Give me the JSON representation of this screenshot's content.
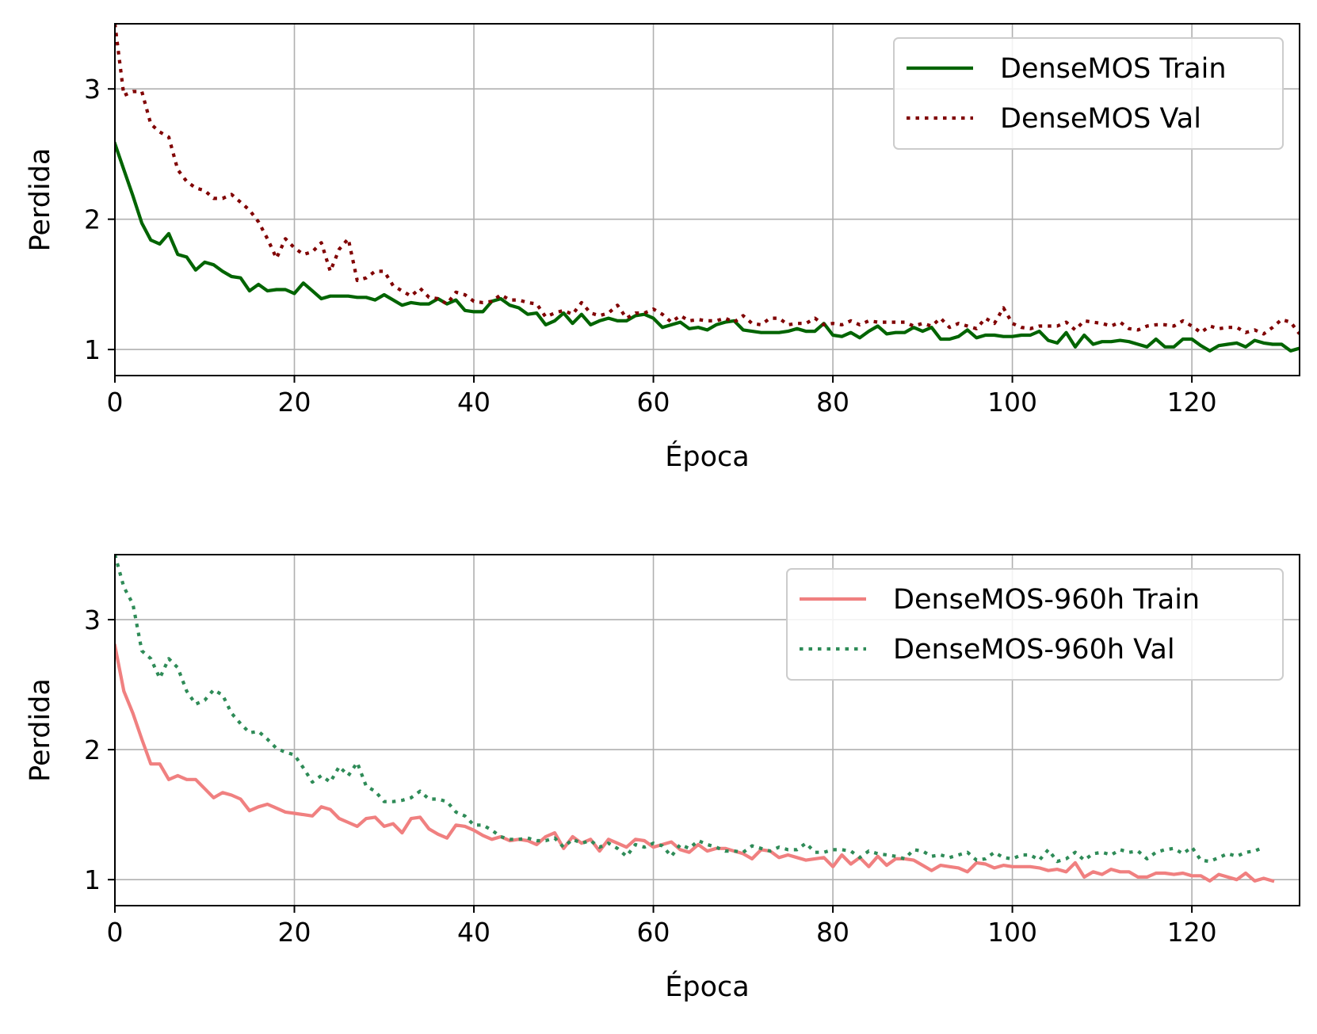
{
  "chart_data": [
    {
      "type": "line",
      "xlabel": "Época",
      "ylabel": "Perdida",
      "xlim": [
        0,
        132
      ],
      "ylim": [
        0.8,
        3.5
      ],
      "xticks": [
        0,
        20,
        40,
        60,
        80,
        100,
        120
      ],
      "yticks": [
        1,
        2,
        3
      ],
      "grid": true,
      "legend_position": "top-right",
      "series": [
        {
          "name": "DenseMOS Train",
          "color": "#006400",
          "style": "solid",
          "values": [
            2.58,
            2.38,
            2.18,
            1.97,
            1.84,
            1.81,
            1.89,
            1.73,
            1.71,
            1.61,
            1.67,
            1.65,
            1.6,
            1.56,
            1.55,
            1.45,
            1.5,
            1.45,
            1.46,
            1.46,
            1.43,
            1.51,
            1.45,
            1.39,
            1.41,
            1.41,
            1.41,
            1.4,
            1.4,
            1.38,
            1.42,
            1.38,
            1.34,
            1.36,
            1.35,
            1.35,
            1.39,
            1.35,
            1.38,
            1.3,
            1.29,
            1.29,
            1.37,
            1.39,
            1.34,
            1.32,
            1.27,
            1.28,
            1.19,
            1.22,
            1.28,
            1.2,
            1.27,
            1.19,
            1.22,
            1.24,
            1.22,
            1.22,
            1.26,
            1.27,
            1.24,
            1.17,
            1.19,
            1.21,
            1.16,
            1.17,
            1.15,
            1.19,
            1.21,
            1.22,
            1.15,
            1.14,
            1.13,
            1.13,
            1.13,
            1.14,
            1.16,
            1.14,
            1.14,
            1.2,
            1.11,
            1.1,
            1.13,
            1.09,
            1.14,
            1.18,
            1.12,
            1.13,
            1.13,
            1.17,
            1.14,
            1.17,
            1.08,
            1.08,
            1.1,
            1.15,
            1.09,
            1.11,
            1.11,
            1.1,
            1.1,
            1.11,
            1.11,
            1.14,
            1.07,
            1.05,
            1.13,
            1.02,
            1.11,
            1.04,
            1.06,
            1.06,
            1.07,
            1.06,
            1.04,
            1.02,
            1.08,
            1.02,
            1.02,
            1.08,
            1.08,
            1.03,
            0.99,
            1.03,
            1.04,
            1.05,
            1.02,
            1.07,
            1.05,
            1.04,
            1.04,
            0.99,
            1.01,
            1.05
          ]
        },
        {
          "name": "DenseMOS Val",
          "color": "#800000",
          "style": "dotted",
          "values": [
            3.5,
            2.95,
            2.98,
            2.98,
            2.73,
            2.67,
            2.63,
            2.38,
            2.29,
            2.24,
            2.22,
            2.16,
            2.16,
            2.19,
            2.13,
            2.07,
            1.98,
            1.85,
            1.7,
            1.85,
            1.78,
            1.73,
            1.75,
            1.82,
            1.6,
            1.77,
            1.85,
            1.53,
            1.55,
            1.6,
            1.6,
            1.49,
            1.45,
            1.41,
            1.47,
            1.4,
            1.39,
            1.35,
            1.44,
            1.42,
            1.37,
            1.36,
            1.37,
            1.42,
            1.38,
            1.38,
            1.36,
            1.35,
            1.25,
            1.28,
            1.3,
            1.27,
            1.36,
            1.28,
            1.26,
            1.28,
            1.34,
            1.24,
            1.28,
            1.28,
            1.31,
            1.27,
            1.21,
            1.26,
            1.22,
            1.23,
            1.22,
            1.22,
            1.24,
            1.21,
            1.26,
            1.2,
            1.19,
            1.24,
            1.24,
            1.19,
            1.2,
            1.2,
            1.24,
            1.19,
            1.2,
            1.19,
            1.22,
            1.19,
            1.22,
            1.21,
            1.21,
            1.21,
            1.21,
            1.18,
            1.2,
            1.18,
            1.24,
            1.17,
            1.2,
            1.18,
            1.16,
            1.24,
            1.2,
            1.32,
            1.2,
            1.17,
            1.16,
            1.18,
            1.18,
            1.18,
            1.21,
            1.15,
            1.22,
            1.21,
            1.2,
            1.18,
            1.21,
            1.16,
            1.15,
            1.18,
            1.19,
            1.19,
            1.18,
            1.22,
            1.18,
            1.13,
            1.18,
            1.16,
            1.17,
            1.17,
            1.13,
            1.15,
            1.12,
            1.17,
            1.23,
            1.21,
            1.12
          ]
        }
      ]
    },
    {
      "type": "line",
      "xlabel": "Época",
      "ylabel": "Perdida",
      "xlim": [
        0,
        132
      ],
      "ylim": [
        0.8,
        3.5
      ],
      "xticks": [
        0,
        20,
        40,
        60,
        80,
        100,
        120
      ],
      "yticks": [
        1,
        2,
        3
      ],
      "grid": true,
      "legend_position": "top-right",
      "series": [
        {
          "name": "DenseMOS-960h  Train",
          "color": "#f08080",
          "style": "solid",
          "values": [
            2.8,
            2.45,
            2.28,
            2.08,
            1.89,
            1.89,
            1.77,
            1.8,
            1.77,
            1.77,
            1.7,
            1.63,
            1.67,
            1.65,
            1.62,
            1.53,
            1.56,
            1.58,
            1.55,
            1.52,
            1.51,
            1.5,
            1.49,
            1.56,
            1.54,
            1.47,
            1.44,
            1.41,
            1.47,
            1.48,
            1.41,
            1.43,
            1.36,
            1.47,
            1.48,
            1.39,
            1.35,
            1.32,
            1.42,
            1.41,
            1.38,
            1.34,
            1.31,
            1.33,
            1.3,
            1.31,
            1.3,
            1.27,
            1.33,
            1.36,
            1.24,
            1.33,
            1.28,
            1.31,
            1.22,
            1.31,
            1.28,
            1.25,
            1.31,
            1.3,
            1.25,
            1.27,
            1.29,
            1.23,
            1.21,
            1.27,
            1.22,
            1.24,
            1.24,
            1.22,
            1.2,
            1.16,
            1.23,
            1.22,
            1.17,
            1.19,
            1.17,
            1.15,
            1.16,
            1.17,
            1.1,
            1.19,
            1.12,
            1.17,
            1.1,
            1.18,
            1.11,
            1.16,
            1.16,
            1.15,
            1.11,
            1.07,
            1.11,
            1.1,
            1.09,
            1.06,
            1.13,
            1.12,
            1.09,
            1.11,
            1.1,
            1.1,
            1.1,
            1.09,
            1.07,
            1.08,
            1.06,
            1.13,
            1.02,
            1.06,
            1.04,
            1.08,
            1.06,
            1.06,
            1.02,
            1.02,
            1.05,
            1.05,
            1.04,
            1.05,
            1.03,
            1.03,
            0.99,
            1.04,
            1.02,
            1.0,
            1.05,
            0.99,
            1.01,
            0.99
          ]
        },
        {
          "name": "DenseMOS-960h  Val",
          "color": "#2e8b57",
          "style": "dotted",
          "values": [
            3.5,
            3.25,
            3.12,
            2.76,
            2.7,
            2.55,
            2.7,
            2.63,
            2.45,
            2.35,
            2.38,
            2.46,
            2.42,
            2.28,
            2.2,
            2.13,
            2.14,
            2.08,
            2.01,
            1.98,
            1.96,
            1.86,
            1.75,
            1.8,
            1.75,
            1.87,
            1.8,
            1.9,
            1.72,
            1.68,
            1.6,
            1.6,
            1.61,
            1.63,
            1.68,
            1.62,
            1.62,
            1.6,
            1.52,
            1.49,
            1.42,
            1.42,
            1.38,
            1.33,
            1.31,
            1.31,
            1.32,
            1.3,
            1.3,
            1.32,
            1.25,
            1.31,
            1.28,
            1.3,
            1.25,
            1.28,
            1.24,
            1.18,
            1.27,
            1.25,
            1.28,
            1.26,
            1.18,
            1.27,
            1.24,
            1.3,
            1.27,
            1.25,
            1.22,
            1.22,
            1.21,
            1.26,
            1.24,
            1.22,
            1.25,
            1.23,
            1.23,
            1.28,
            1.21,
            1.21,
            1.23,
            1.23,
            1.22,
            1.17,
            1.22,
            1.2,
            1.19,
            1.18,
            1.16,
            1.23,
            1.22,
            1.18,
            1.19,
            1.17,
            1.19,
            1.21,
            1.15,
            1.16,
            1.21,
            1.17,
            1.16,
            1.19,
            1.19,
            1.15,
            1.23,
            1.14,
            1.16,
            1.21,
            1.15,
            1.2,
            1.21,
            1.19,
            1.23,
            1.21,
            1.22,
            1.16,
            1.21,
            1.23,
            1.24,
            1.2,
            1.25,
            1.15,
            1.14,
            1.17,
            1.2,
            1.18,
            1.21,
            1.22,
            1.25
          ]
        }
      ]
    }
  ]
}
